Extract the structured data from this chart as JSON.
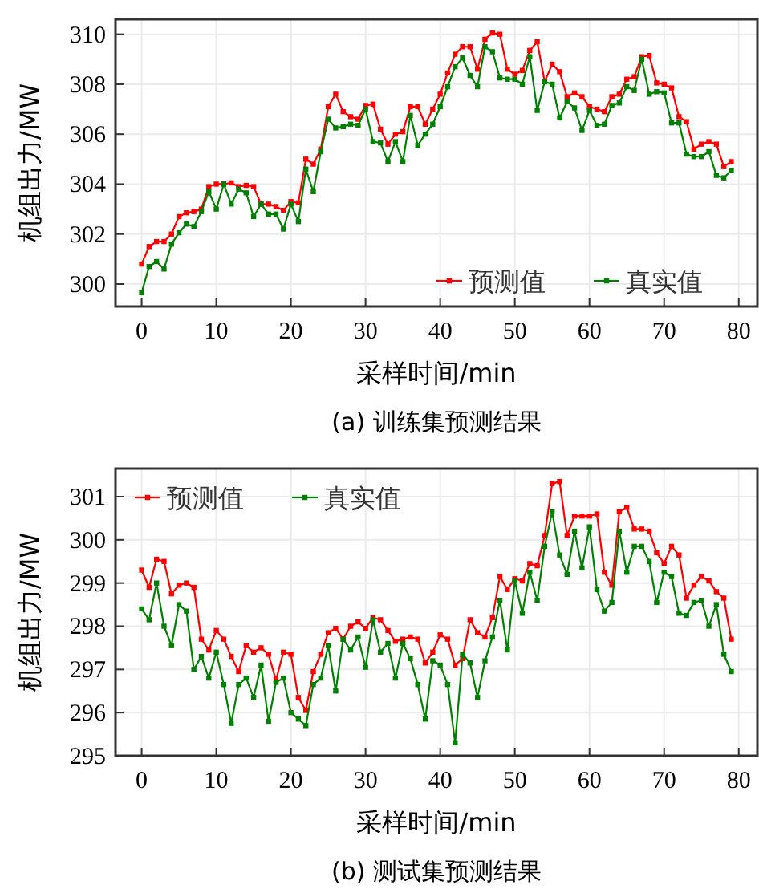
{
  "chart_data": [
    {
      "type": "line",
      "xlabel": "采样时间/min",
      "ylabel": "机组出力/MW",
      "annotations": [
        "(a)  训练集预测结果"
      ],
      "xlim": [
        -3.5,
        82.5
      ],
      "ylim": [
        299.1,
        310.6
      ],
      "xticks": [
        0,
        10,
        20,
        30,
        40,
        50,
        60,
        70,
        80
      ],
      "yticks": [
        300,
        302,
        304,
        306,
        308,
        310
      ],
      "grid": true,
      "legend": "bottom right",
      "marker": "square",
      "line_style": "solid",
      "x": [
        0,
        1,
        2,
        3,
        4,
        5,
        6,
        7,
        8,
        9,
        10,
        11,
        12,
        13,
        14,
        15,
        16,
        17,
        18,
        19,
        20,
        21,
        22,
        23,
        24,
        25,
        26,
        27,
        28,
        29,
        30,
        31,
        32,
        33,
        34,
        35,
        36,
        37,
        38,
        39,
        40,
        41,
        42,
        43,
        44,
        45,
        46,
        47,
        48,
        49,
        50,
        51,
        52,
        53,
        54,
        55,
        56,
        57,
        58,
        59,
        60,
        61,
        62,
        63,
        64,
        65,
        66,
        67,
        68,
        69,
        70,
        71,
        72,
        73,
        74,
        75,
        76,
        77,
        78,
        79
      ],
      "series": [
        {
          "name": "预测值",
          "color": "#ff0000",
          "values": [
            300.8,
            301.5,
            301.7,
            301.7,
            302.0,
            302.7,
            302.85,
            302.9,
            303.0,
            303.9,
            304.0,
            304.0,
            304.05,
            303.9,
            303.95,
            303.9,
            303.2,
            303.2,
            303.1,
            302.95,
            303.3,
            303.25,
            305.0,
            304.8,
            305.4,
            307.1,
            307.6,
            306.9,
            306.7,
            306.6,
            307.15,
            307.2,
            306.2,
            305.6,
            306.0,
            306.1,
            307.1,
            307.1,
            306.4,
            307.0,
            307.6,
            308.45,
            309.2,
            309.5,
            309.5,
            308.6,
            309.8,
            310.05,
            310.0,
            308.6,
            308.4,
            308.55,
            309.35,
            309.7,
            308.1,
            308.8,
            308.5,
            307.5,
            307.65,
            307.5,
            307.1,
            307.0,
            306.9,
            307.5,
            307.6,
            308.2,
            308.3,
            309.1,
            309.15,
            308.05,
            308.0,
            307.85,
            306.7,
            306.5,
            305.4,
            305.6,
            305.7,
            305.6,
            304.7,
            304.9
          ]
        },
        {
          "name": "真实值",
          "color": "#008000",
          "values": [
            299.65,
            300.7,
            300.9,
            300.6,
            301.6,
            302.05,
            302.4,
            302.3,
            302.9,
            303.7,
            303.0,
            304.0,
            303.2,
            303.8,
            303.65,
            302.7,
            303.2,
            302.8,
            302.8,
            302.2,
            303.2,
            302.5,
            304.6,
            303.7,
            305.3,
            306.6,
            306.25,
            306.3,
            306.4,
            306.35,
            307.0,
            305.7,
            305.65,
            304.9,
            305.7,
            304.9,
            306.75,
            305.55,
            306.0,
            306.4,
            307.1,
            307.9,
            308.7,
            309.05,
            308.35,
            307.9,
            309.5,
            309.3,
            308.25,
            308.2,
            308.2,
            308.0,
            309.1,
            306.95,
            308.1,
            308.0,
            306.65,
            307.3,
            307.05,
            306.15,
            306.95,
            306.35,
            306.4,
            307.15,
            307.25,
            307.9,
            307.75,
            309.0,
            307.6,
            307.7,
            307.65,
            306.45,
            306.45,
            305.2,
            305.1,
            305.1,
            305.3,
            304.35,
            304.25,
            304.55
          ]
        }
      ]
    },
    {
      "type": "line",
      "xlabel": "采样时间/min",
      "ylabel": "机组出力/MW",
      "annotations": [
        "(b)  测试集预测结果"
      ],
      "xlim": [
        -3.5,
        82.5
      ],
      "ylim": [
        295,
        301.65
      ],
      "xticks": [
        0,
        10,
        20,
        30,
        40,
        50,
        60,
        70,
        80
      ],
      "yticks": [
        295,
        296,
        297,
        298,
        299,
        300,
        301
      ],
      "grid": true,
      "legend": "top left",
      "marker": "square",
      "line_style": "solid",
      "x": [
        0,
        1,
        2,
        3,
        4,
        5,
        6,
        7,
        8,
        9,
        10,
        11,
        12,
        13,
        14,
        15,
        16,
        17,
        18,
        19,
        20,
        21,
        22,
        23,
        24,
        25,
        26,
        27,
        28,
        29,
        30,
        31,
        32,
        33,
        34,
        35,
        36,
        37,
        38,
        39,
        40,
        41,
        42,
        43,
        44,
        45,
        46,
        47,
        48,
        49,
        50,
        51,
        52,
        53,
        54,
        55,
        56,
        57,
        58,
        59,
        60,
        61,
        62,
        63,
        64,
        65,
        66,
        67,
        68,
        69,
        70,
        71,
        72,
        73,
        74,
        75,
        76,
        77,
        78,
        79
      ],
      "series": [
        {
          "name": "预测值",
          "color": "#ff0000",
          "values": [
            299.3,
            298.9,
            299.55,
            299.5,
            298.75,
            298.95,
            299.0,
            298.9,
            297.7,
            297.45,
            297.9,
            297.7,
            297.3,
            296.95,
            297.55,
            297.4,
            297.5,
            297.35,
            296.75,
            297.4,
            297.35,
            296.35,
            296.05,
            296.95,
            297.35,
            297.85,
            297.95,
            297.7,
            298.0,
            298.1,
            297.95,
            298.2,
            298.15,
            297.9,
            297.65,
            297.7,
            297.75,
            297.7,
            297.15,
            297.4,
            297.8,
            297.7,
            297.1,
            297.25,
            298.15,
            297.85,
            297.75,
            298.2,
            299.15,
            298.85,
            299.1,
            299.05,
            299.45,
            299.4,
            300.1,
            301.3,
            301.35,
            300.1,
            300.55,
            300.55,
            300.55,
            300.6,
            299.25,
            298.95,
            300.65,
            300.75,
            300.25,
            300.25,
            300.2,
            299.7,
            299.45,
            299.85,
            299.65,
            298.65,
            298.95,
            299.15,
            299.05,
            298.8,
            298.65,
            297.7
          ]
        },
        {
          "name": "真实值",
          "color": "#008000",
          "values": [
            298.4,
            298.15,
            299.0,
            298.0,
            297.55,
            298.5,
            298.35,
            297.0,
            297.3,
            296.8,
            297.4,
            296.65,
            295.75,
            296.65,
            296.8,
            296.35,
            297.1,
            295.8,
            296.7,
            296.8,
            296.0,
            295.85,
            295.7,
            296.65,
            296.8,
            297.55,
            296.5,
            297.7,
            297.45,
            297.75,
            297.05,
            298.15,
            297.4,
            297.6,
            296.8,
            297.6,
            297.25,
            296.65,
            295.85,
            297.2,
            297.1,
            296.65,
            295.3,
            297.35,
            297.15,
            296.35,
            297.2,
            297.75,
            298.6,
            297.45,
            299.05,
            298.3,
            299.25,
            298.6,
            299.85,
            300.65,
            299.65,
            299.2,
            300.2,
            299.35,
            300.3,
            298.85,
            298.35,
            298.55,
            300.2,
            299.25,
            299.85,
            299.85,
            299.5,
            298.55,
            299.25,
            299.15,
            298.3,
            298.25,
            298.55,
            298.6,
            298.0,
            298.5,
            297.35,
            296.95
          ]
        }
      ]
    }
  ]
}
